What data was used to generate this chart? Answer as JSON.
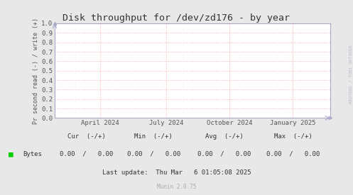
{
  "title": "Disk throughput for /dev/zd176 - by year",
  "ylabel": "Pr second read (-) / write (+)",
  "background_color": "#e8e8e8",
  "plot_bg_color": "#ffffff",
  "grid_color": "#ffaaaa",
  "axis_color": "#aaaacc",
  "title_color": "#333333",
  "ylim": [
    0.0,
    1.0
  ],
  "yticks": [
    0.0,
    0.1,
    0.2,
    0.3,
    0.4,
    0.5,
    0.6,
    0.7,
    0.8,
    0.9,
    1.0
  ],
  "xtick_labels": [
    "April 2024",
    "July 2024",
    "October 2024",
    "January 2025"
  ],
  "xtick_positions": [
    0.165,
    0.405,
    0.635,
    0.865
  ],
  "legend_label": "Bytes",
  "legend_color": "#00cc00",
  "cur_label": "Cur  (-/+)",
  "min_label": "Min  (-/+)",
  "avg_label": "Avg  (-/+)",
  "max_label": "Max  (-/+)",
  "cur_val": "0.00  /   0.00",
  "min_val": "0.00  /   0.00",
  "avg_val": "0.00  /   0.00",
  "max_val": "0.00  /   0.00",
  "last_update": "Last update:  Thu Mar   6 01:05:08 2025",
  "munin_version": "Munin 2.0.75",
  "watermark": "RRDTOOL / TOBI OETIKER",
  "font_family": "DejaVu Sans Mono",
  "stats_font_size": 6.5,
  "title_font_size": 9.5
}
